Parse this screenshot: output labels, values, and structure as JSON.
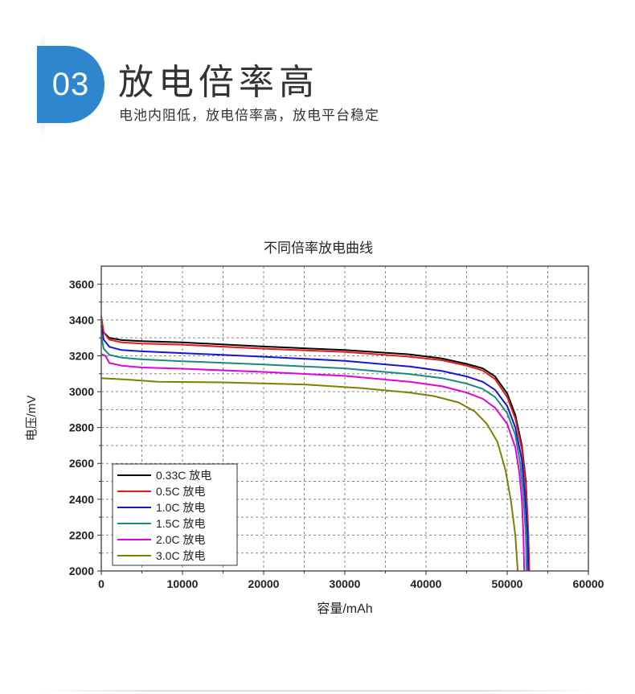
{
  "section": {
    "number": "03",
    "title": "放电倍率高",
    "subtitle": "电池内阻低，放电倍率高，放电平台稳定"
  },
  "chart_data": {
    "type": "line",
    "title": "不同倍率放电曲线",
    "xlabel": "容量/mAh",
    "ylabel": "电压/mV",
    "xlim": [
      0,
      60000
    ],
    "ylim": [
      2000,
      3700
    ],
    "grid": true,
    "legend_position": "bottom-left",
    "x_ticks": [
      0,
      10000,
      20000,
      30000,
      40000,
      50000,
      60000
    ],
    "y_ticks": [
      2000,
      2200,
      2400,
      2600,
      2800,
      3000,
      3200,
      3400,
      3600
    ],
    "series": [
      {
        "name": "0.33C 放电",
        "color": "#000000",
        "points": [
          [
            0,
            3390
          ],
          [
            300,
            3330
          ],
          [
            1000,
            3300
          ],
          [
            2500,
            3288
          ],
          [
            5000,
            3282
          ],
          [
            10000,
            3275
          ],
          [
            20000,
            3252
          ],
          [
            30000,
            3232
          ],
          [
            38000,
            3208
          ],
          [
            42000,
            3185
          ],
          [
            45000,
            3155
          ],
          [
            47000,
            3130
          ],
          [
            48500,
            3085
          ],
          [
            50000,
            2990
          ],
          [
            51000,
            2870
          ],
          [
            51800,
            2700
          ],
          [
            52300,
            2500
          ],
          [
            52600,
            2200
          ],
          [
            52700,
            2000
          ]
        ]
      },
      {
        "name": "0.5C 放电",
        "color": "#e31a1c",
        "points": [
          [
            0,
            3420
          ],
          [
            300,
            3330
          ],
          [
            1000,
            3290
          ],
          [
            2500,
            3275
          ],
          [
            5000,
            3268
          ],
          [
            10000,
            3262
          ],
          [
            20000,
            3240
          ],
          [
            30000,
            3222
          ],
          [
            38000,
            3195
          ],
          [
            42000,
            3175
          ],
          [
            45000,
            3145
          ],
          [
            47000,
            3118
          ],
          [
            48500,
            3070
          ],
          [
            50000,
            2970
          ],
          [
            51000,
            2850
          ],
          [
            51800,
            2680
          ],
          [
            52300,
            2480
          ],
          [
            52600,
            2200
          ],
          [
            52700,
            2000
          ]
        ]
      },
      {
        "name": "1.0C 放电",
        "color": "#1515d8",
        "points": [
          [
            0,
            3370
          ],
          [
            300,
            3290
          ],
          [
            1000,
            3250
          ],
          [
            2500,
            3232
          ],
          [
            5000,
            3225
          ],
          [
            10000,
            3215
          ],
          [
            20000,
            3195
          ],
          [
            30000,
            3172
          ],
          [
            38000,
            3140
          ],
          [
            42000,
            3115
          ],
          [
            45000,
            3085
          ],
          [
            47000,
            3055
          ],
          [
            48500,
            3010
          ],
          [
            50000,
            2920
          ],
          [
            51000,
            2800
          ],
          [
            51800,
            2620
          ],
          [
            52200,
            2420
          ],
          [
            52500,
            2200
          ],
          [
            52600,
            2000
          ]
        ]
      },
      {
        "name": "1.5C 放电",
        "color": "#1a8a7e",
        "points": [
          [
            0,
            3310
          ],
          [
            300,
            3240
          ],
          [
            1000,
            3205
          ],
          [
            2500,
            3190
          ],
          [
            5000,
            3180
          ],
          [
            10000,
            3170
          ],
          [
            20000,
            3152
          ],
          [
            30000,
            3130
          ],
          [
            38000,
            3098
          ],
          [
            42000,
            3075
          ],
          [
            45000,
            3045
          ],
          [
            47000,
            3015
          ],
          [
            48500,
            2970
          ],
          [
            50000,
            2880
          ],
          [
            51000,
            2760
          ],
          [
            51600,
            2600
          ],
          [
            52000,
            2420
          ],
          [
            52300,
            2200
          ],
          [
            52400,
            2000
          ]
        ]
      },
      {
        "name": "2.0C 放电",
        "color": "#e000e0",
        "points": [
          [
            0,
            3210
          ],
          [
            500,
            3200
          ],
          [
            1000,
            3160
          ],
          [
            2500,
            3145
          ],
          [
            5000,
            3135
          ],
          [
            10000,
            3128
          ],
          [
            20000,
            3110
          ],
          [
            30000,
            3088
          ],
          [
            38000,
            3055
          ],
          [
            42000,
            3030
          ],
          [
            45000,
            2995
          ],
          [
            47000,
            2960
          ],
          [
            48500,
            2910
          ],
          [
            50000,
            2820
          ],
          [
            51000,
            2690
          ],
          [
            51500,
            2550
          ],
          [
            51800,
            2400
          ],
          [
            52000,
            2200
          ],
          [
            52100,
            2000
          ]
        ]
      },
      {
        "name": "3.0C 放电",
        "color": "#808000",
        "points": [
          [
            0,
            3075
          ],
          [
            3000,
            3068
          ],
          [
            7000,
            3055
          ],
          [
            15000,
            3052
          ],
          [
            25000,
            3040
          ],
          [
            32000,
            3020
          ],
          [
            38000,
            2995
          ],
          [
            41000,
            2975
          ],
          [
            44000,
            2940
          ],
          [
            46000,
            2890
          ],
          [
            47500,
            2820
          ],
          [
            48800,
            2720
          ],
          [
            49800,
            2560
          ],
          [
            50500,
            2380
          ],
          [
            51000,
            2200
          ],
          [
            51300,
            2000
          ]
        ]
      }
    ]
  }
}
